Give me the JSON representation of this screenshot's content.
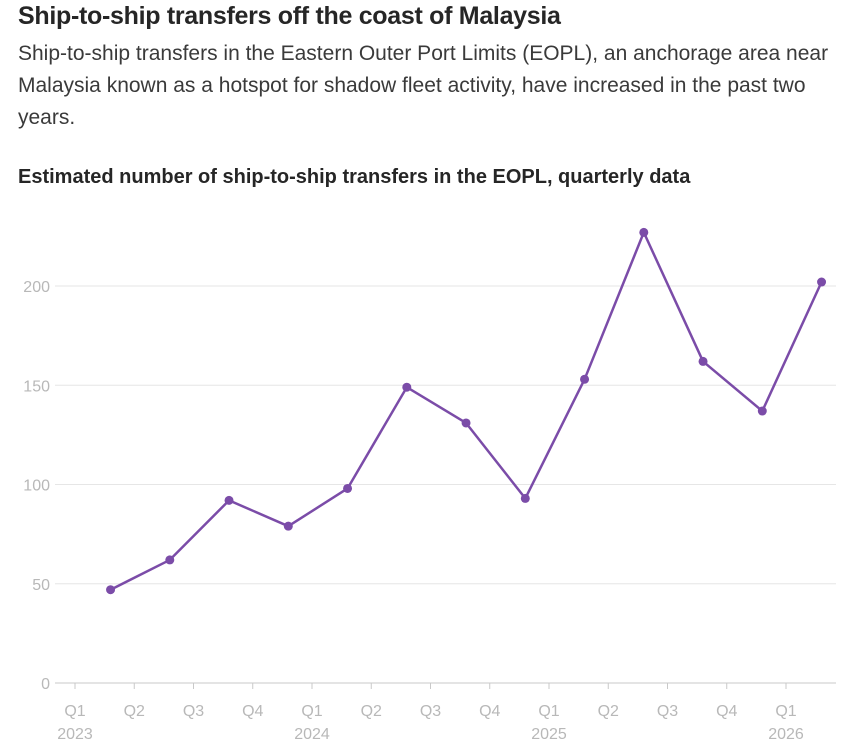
{
  "header": {
    "title": "Ship-to-ship transfers off the coast of Malaysia",
    "subtitle": "Ship-to-ship transfers in the Eastern Outer Port Limits (EOPL), an anchorage area near Malaysia known as a hotspot for shadow fleet activity, have increased in the past two years."
  },
  "chart_data": {
    "type": "line",
    "title": "Estimated number of ship-to-ship transfers in the EOPL, quarterly data",
    "xlabel": "",
    "ylabel": "",
    "ylim": [
      0,
      230
    ],
    "yticks": [
      0,
      50,
      100,
      150,
      200
    ],
    "grid": true,
    "color": "#7b4ca8",
    "quarter_ticks": [
      "Q1",
      "Q2",
      "Q3",
      "Q4",
      "Q1",
      "Q2",
      "Q3",
      "Q4",
      "Q1",
      "Q2",
      "Q3",
      "Q4",
      "Q1"
    ],
    "year_labels": [
      "2023",
      "2024",
      "2025",
      "2026"
    ],
    "series": [
      {
        "name": "Ship-to-ship transfers",
        "values": [
          47,
          62,
          92,
          79,
          98,
          149,
          131,
          93,
          153,
          227,
          162,
          137,
          202
        ]
      }
    ]
  }
}
